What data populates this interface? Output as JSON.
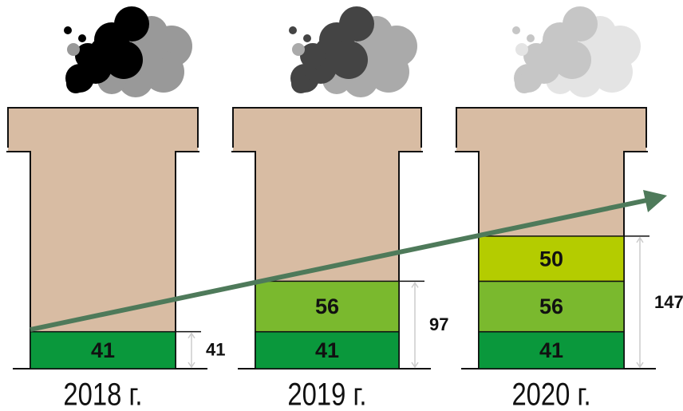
{
  "chart_data": {
    "type": "stacked-bar",
    "categories": [
      "2018 г.",
      "2019 г.",
      "2020 г."
    ],
    "series": [
      {
        "color": "#0a983c",
        "values": [
          41,
          41,
          41
        ]
      },
      {
        "color": "#7ab92e",
        "values": [
          null,
          56,
          56
        ]
      },
      {
        "color": "#b4cc00",
        "values": [
          null,
          null,
          50
        ]
      }
    ],
    "totals": [
      41,
      97,
      147
    ]
  }
}
